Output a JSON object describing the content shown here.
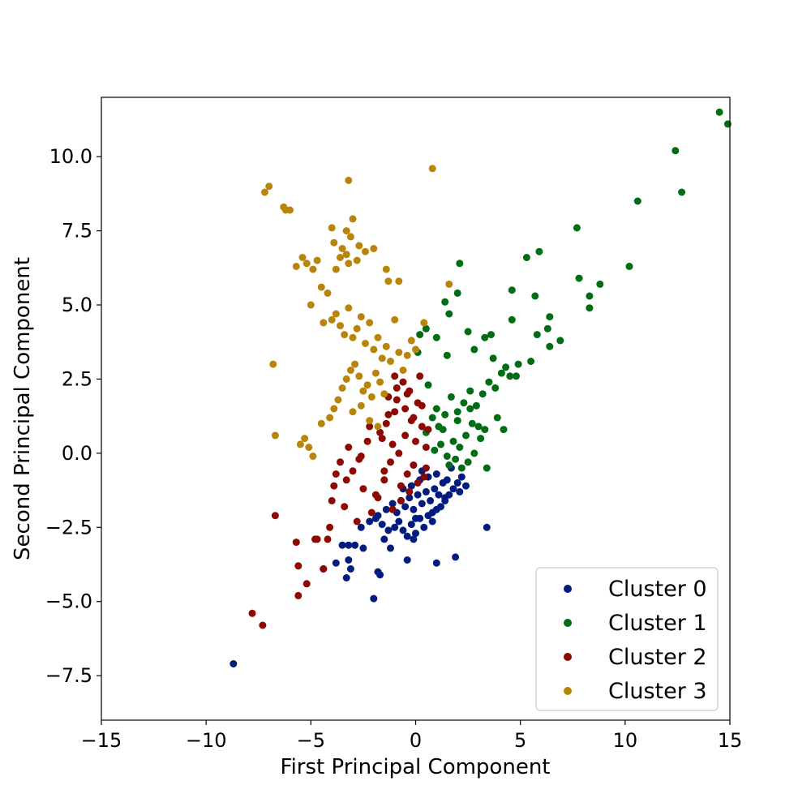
{
  "chart_data": {
    "type": "scatter",
    "title": "",
    "xlabel": "First Principal Component",
    "ylabel": "Second Principal Component",
    "xlim": [
      -15,
      15
    ],
    "ylim": [
      -9,
      12
    ],
    "xticks": [
      -15,
      -10,
      -5,
      0,
      5,
      10,
      15
    ],
    "xtick_labels": [
      "−15",
      "−10",
      "−5",
      "0",
      "5",
      "10",
      "15"
    ],
    "yticks": [
      -7.5,
      -5.0,
      -2.5,
      0.0,
      2.5,
      5.0,
      7.5,
      10.0
    ],
    "ytick_labels": [
      "−7.5",
      "−5.0",
      "−2.5",
      "0.0",
      "2.5",
      "5.0",
      "7.5",
      "10.0"
    ],
    "grid": false,
    "legend_position": "bottom-right",
    "series": [
      {
        "name": "Cluster 0",
        "color": "#001c7f",
        "x": [
          -8.7,
          -4.4,
          -3.8,
          -3.5,
          -3.3,
          -3.2,
          -3.1,
          -3.2,
          -2.9,
          -2.5,
          -2.0,
          -1.8,
          -1.7,
          -1.5,
          -1.2,
          -0.4,
          1.0,
          1.9,
          3.4,
          -2.6,
          -2.2,
          -1.9,
          -1.6,
          -1.3,
          -1.0,
          -0.8,
          -0.6,
          -0.4,
          -0.2,
          0.0,
          0.2,
          0.4,
          0.6,
          0.8,
          1.0,
          1.2,
          1.4,
          1.6,
          1.8,
          2.0,
          2.2,
          -1.4,
          -1.1,
          -0.9,
          -0.7,
          -0.5,
          -0.3,
          -0.1,
          0.1,
          0.3,
          0.5,
          0.7,
          0.9,
          1.1,
          1.3,
          1.5,
          -0.6,
          -0.2,
          0.2,
          0.6,
          1.0,
          2.1,
          0.3,
          -0.1,
          0.8,
          1.4,
          0.0,
          -1.8,
          2.4,
          1.7
        ],
        "y": [
          -7.1,
          -3.9,
          -3.7,
          -3.1,
          -4.2,
          -3.6,
          -3.9,
          -3.1,
          -3.1,
          -3.2,
          -4.9,
          -4.0,
          -4.1,
          -2.9,
          -3.2,
          -3.6,
          -3.7,
          -3.5,
          -2.5,
          -2.5,
          -2.3,
          -2.2,
          -2.4,
          -2.6,
          -2.5,
          -2.3,
          -2.6,
          -2.8,
          -2.4,
          -2.7,
          -2.2,
          -2.5,
          -2.1,
          -2.3,
          -1.9,
          -1.8,
          -1.6,
          -1.4,
          -1.2,
          -1.0,
          -0.8,
          -1.9,
          -1.7,
          -2.0,
          -1.6,
          -1.8,
          -1.5,
          -1.9,
          -1.4,
          -1.7,
          -1.3,
          -1.6,
          -1.2,
          -1.4,
          -1.0,
          -0.9,
          -1.2,
          -1.1,
          -0.9,
          -0.8,
          -0.7,
          -1.3,
          -0.6,
          -2.9,
          -2.0,
          -1.5,
          -2.2,
          -2.1,
          -1.1,
          -0.5
        ]
      },
      {
        "name": "Cluster 1",
        "color": "#006d14",
        "x": [
          14.5,
          14.9,
          12.4,
          12.7,
          10.6,
          10.2,
          7.7,
          7.8,
          8.3,
          8.3,
          8.8,
          6.9,
          6.3,
          6.4,
          6.4,
          5.8,
          5.3,
          5.9,
          5.7,
          4.6,
          4.6,
          4.9,
          4.1,
          3.8,
          3.6,
          3.3,
          2.8,
          2.5,
          2.1,
          1.6,
          1.5,
          1.4,
          1.0,
          0.5,
          0.2,
          0.1,
          2.0,
          3.9,
          4.2,
          4.5,
          3.5,
          3.2,
          2.9,
          2.6,
          2.3,
          2.0,
          1.7,
          1.4,
          1.1,
          0.8,
          0.5,
          3.0,
          2.7,
          2.4,
          2.1,
          1.8,
          1.5,
          1.2,
          0.9,
          2.5,
          2.2,
          1.9,
          1.6,
          2.8,
          3.1,
          3.4,
          1.3,
          2.6,
          2.0,
          3.7,
          4.3,
          4.8,
          5.5,
          3.3,
          1.0,
          0.6
        ],
        "y": [
          11.5,
          11.1,
          10.2,
          8.8,
          8.5,
          6.3,
          7.6,
          5.9,
          5.3,
          4.9,
          5.7,
          3.8,
          4.2,
          4.6,
          3.6,
          4.0,
          6.6,
          6.8,
          5.3,
          5.5,
          4.5,
          3.0,
          2.7,
          2.2,
          4.0,
          3.9,
          3.5,
          4.1,
          6.4,
          4.7,
          3.3,
          5.1,
          3.9,
          4.2,
          4.0,
          3.4,
          5.4,
          1.2,
          0.8,
          2.6,
          2.4,
          2.0,
          1.6,
          2.1,
          1.7,
          1.4,
          1.9,
          1.3,
          0.9,
          1.2,
          0.7,
          0.9,
          1.0,
          0.6,
          0.2,
          0.4,
          -0.1,
          0.3,
          0.1,
          -0.3,
          -0.5,
          -0.2,
          -0.4,
          0.0,
          0.5,
          -0.5,
          0.8,
          1.5,
          1.1,
          3.2,
          2.9,
          2.6,
          3.1,
          0.8,
          1.5,
          2.3
        ]
      },
      {
        "name": "Cluster 2",
        "color": "#8c0800",
        "x": [
          -7.8,
          -7.3,
          -6.7,
          -5.7,
          -5.6,
          -5.6,
          -5.2,
          -4.8,
          -4.7,
          -4.4,
          -4.2,
          -4.1,
          -4.0,
          -3.9,
          -3.8,
          -3.6,
          -3.4,
          -3.2,
          -3.0,
          -2.8,
          -2.7,
          -2.5,
          -2.3,
          -2.1,
          -1.9,
          -1.7,
          -1.5,
          -1.3,
          -1.1,
          -0.9,
          -0.7,
          -0.5,
          -0.3,
          -0.1,
          0.1,
          0.3,
          0.5,
          -1.6,
          -1.4,
          -1.2,
          -1.0,
          -0.8,
          -0.6,
          -0.4,
          -0.2,
          0.0,
          0.2,
          0.4,
          0.6,
          -1.8,
          -1.5,
          -1.1,
          -0.7,
          -0.3,
          0.1,
          0.5,
          -1.3,
          -0.9,
          -0.5,
          -0.1,
          0.3,
          -2.2,
          -2.6,
          -3.3,
          -1.0,
          -0.4
        ],
        "y": [
          -5.4,
          -5.8,
          -2.1,
          -3.0,
          -3.8,
          -4.8,
          -4.4,
          -2.9,
          -2.9,
          -3.9,
          -2.9,
          -2.5,
          -1.6,
          -1.1,
          -0.7,
          -0.3,
          -1.8,
          0.2,
          -0.6,
          -2.3,
          -0.2,
          -1.2,
          0.4,
          -2.0,
          -1.4,
          0.7,
          -0.9,
          1.3,
          0.3,
          1.8,
          -1.1,
          0.6,
          2.1,
          -0.4,
          1.7,
          0.9,
          0.2,
          0.5,
          1.0,
          -0.3,
          1.4,
          0.0,
          2.4,
          -0.7,
          1.1,
          0.4,
          2.6,
          -0.8,
          0.8,
          -1.5,
          -0.6,
          -1.9,
          -1.6,
          -1.3,
          -1.0,
          -0.5,
          1.9,
          2.2,
          1.5,
          1.2,
          1.6,
          0.9,
          -0.1,
          -0.9,
          2.6,
          2.0
        ]
      },
      {
        "name": "Cluster 3",
        "color": "#b8850a",
        "x": [
          -7.2,
          -7.0,
          -6.3,
          -6.2,
          -6.0,
          -3.2,
          0.8,
          -4.0,
          -3.9,
          -3.3,
          -3.2,
          -3.0,
          -2.8,
          -3.8,
          -3.6,
          -3.5,
          -3.3,
          -3.1,
          -2.7,
          -2.4,
          -2.0,
          -1.4,
          -1.3,
          -0.8,
          -5.7,
          -5.4,
          -5.2,
          -5.0,
          -4.9,
          -4.7,
          -4.5,
          -4.4,
          -4.2,
          -4.0,
          -3.8,
          -3.6,
          -3.4,
          -3.2,
          -3.0,
          -2.8,
          -2.6,
          -2.4,
          -2.2,
          -2.0,
          -1.8,
          -1.6,
          -1.4,
          -1.2,
          -1.0,
          -0.8,
          -0.6,
          -0.4,
          -0.2,
          0.0,
          0.4,
          1.6,
          -6.8,
          -6.7,
          -5.5,
          -5.3,
          -5.1,
          -4.9,
          -4.5,
          -4.1,
          -3.9,
          -3.7,
          -3.5,
          -3.3,
          -3.1,
          -2.9,
          -2.7,
          -2.5,
          -2.3,
          -2.1,
          -1.9,
          -1.7,
          -1.5,
          -3.0,
          -2.6,
          -2.2,
          -1.8
        ],
        "y": [
          8.8,
          9.0,
          8.3,
          8.2,
          8.2,
          9.2,
          9.6,
          7.6,
          7.1,
          7.5,
          6.4,
          7.9,
          6.5,
          6.2,
          6.6,
          6.9,
          6.7,
          7.3,
          7.0,
          6.8,
          6.9,
          6.2,
          5.8,
          5.8,
          6.3,
          6.6,
          6.4,
          5.0,
          6.2,
          6.5,
          5.6,
          4.4,
          5.4,
          4.5,
          4.7,
          4.3,
          4.0,
          4.9,
          3.9,
          4.2,
          4.6,
          3.7,
          4.4,
          3.5,
          3.9,
          3.2,
          3.6,
          3.1,
          4.5,
          3.4,
          2.8,
          3.3,
          3.8,
          3.5,
          4.4,
          5.7,
          3.0,
          0.6,
          0.3,
          0.5,
          0.2,
          -0.1,
          1.0,
          1.2,
          1.5,
          1.8,
          2.2,
          2.5,
          2.8,
          3.0,
          2.6,
          2.1,
          2.3,
          1.9,
          2.7,
          2.4,
          2.0,
          1.4,
          1.6,
          1.1,
          0.9
        ]
      }
    ]
  }
}
